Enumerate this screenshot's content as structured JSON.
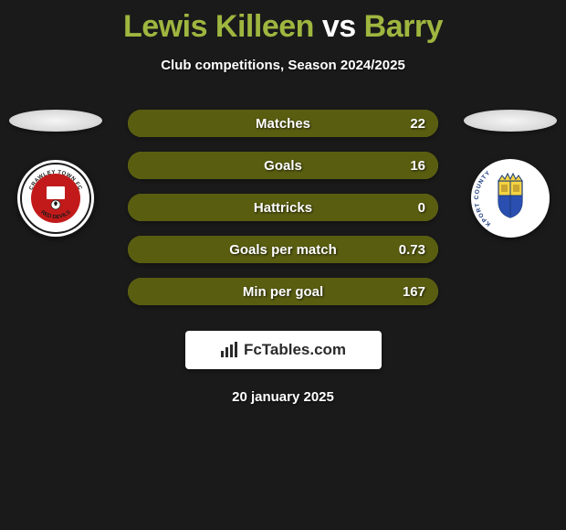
{
  "title": {
    "player1": "Lewis Killeen",
    "vs": "vs",
    "player2": "Barry",
    "color_player1": "#9fb63f",
    "color_vs": "#ffffff",
    "color_player2": "#9fb63f"
  },
  "subtitle": "Club competitions, Season 2024/2025",
  "colors": {
    "background": "#1a1a1a",
    "bar_bg": "#8a8f21",
    "bar_fill": "#595d10",
    "text_light": "#ffffff",
    "logo_bg": "#ffffff",
    "logo_text": "#2a2a2a"
  },
  "stats": [
    {
      "label": "Matches",
      "value": "22",
      "fill_pct": 100
    },
    {
      "label": "Goals",
      "value": "16",
      "fill_pct": 100
    },
    {
      "label": "Hattricks",
      "value": "0",
      "fill_pct": 100
    },
    {
      "label": "Goals per match",
      "value": "0.73",
      "fill_pct": 100
    },
    {
      "label": "Min per goal",
      "value": "167",
      "fill_pct": 100
    }
  ],
  "badge_left": {
    "outer_bg": "#ffffff",
    "ring_color": "#1a1a1a",
    "inner_bg": "#c21a1a",
    "top_text": "CRAWLEY TOWN FC",
    "bottom_text": "RED DEVILS",
    "text_color": "#ffffff"
  },
  "badge_right": {
    "outer_bg": "#ffffff",
    "shield_top": "#f5d442",
    "shield_bottom": "#2a4fb0",
    "side_text": "KPORT COUNTY",
    "text_color": "#1a3a7a"
  },
  "logo": {
    "brand": "FcTables.com"
  },
  "date": "20 january 2025"
}
